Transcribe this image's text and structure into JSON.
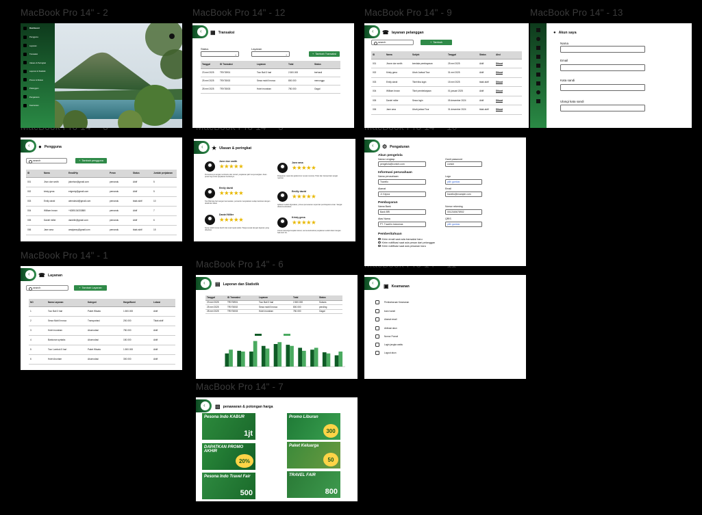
{
  "frames": {
    "f2": {
      "title": "MacBook Pro 14\" - 2",
      "brand": "Dashboard",
      "menu": [
        "Pengguna",
        "Layanan",
        "Transaksi",
        "Ulasan & Peringkat",
        "Laporan & Statistik",
        "Promo & Diskon",
        "Pelanggan",
        "Pengaturan",
        "Keamanan"
      ]
    },
    "f12": {
      "title": "MacBook Pro 14\" - 12",
      "page_title": "Transaksi",
      "status_label": "Status",
      "layanan_label": "Layanan",
      "add_button": "Tambah Transaksi",
      "headers": [
        "Tanggal",
        "ID Transaksi",
        "Layanan",
        "Total",
        "Status"
      ],
      "rows": [
        [
          "23 mei 2025",
          "TRX78901",
          "Tour Bali 3 hari",
          "2.500.000",
          "berhasil"
        ],
        [
          "25 mei 2025",
          "TRX78002",
          "Sewa mobil Innova",
          "800.000",
          "menunggu"
        ],
        [
          "28 mei 2025",
          "TRX78003",
          "Hotel murahan",
          "750.000",
          "Gagal"
        ]
      ]
    },
    "f9": {
      "title": "MacBook Pro 14\" - 9",
      "page_title": "layanan pelanggan",
      "search_text": "search",
      "add_button": "Tambah",
      "headers": [
        "ID",
        "Nama",
        "Subjek",
        "Tanggal",
        "Status",
        "Aksi"
      ],
      "rows": [
        [
          "001",
          "Jhone doe smith",
          "kendala pembayaran",
          "25 mei 2025",
          "Aktif",
          "Dibuat"
        ],
        [
          "002",
          "Kristy gena",
          "Ubah Jadwal Tour",
          "31 mei 2025",
          "Aktif",
          "Dibuat"
        ],
        [
          "003",
          "Emily david",
          "Tiket tiba login",
          "15 mei 2025",
          "tidak aktif",
          "Dibuat"
        ],
        [
          "004",
          "William brown",
          "Tiket pembelanjaan",
          "01 januari 2025",
          "Aktif",
          "Dibuat"
        ],
        [
          "005",
          "Daniel miller",
          "Sewa login",
          "05 desember 2024",
          "Aktif",
          "Dibuat"
        ],
        [
          "006",
          "Jane ama",
          "Ubah jadwal Tour",
          "31 desember 2024",
          "tidak aktif",
          "Dibuat"
        ]
      ]
    },
    "f13": {
      "title": "MacBook Pro 14\" - 13",
      "page_title": "Akun saya",
      "fields": [
        "Nama",
        "Email",
        "Kata sandi",
        "Ulangi kata sandi"
      ]
    },
    "f3": {
      "title": "MacBook Pro 14\" - 3",
      "page_title": "Pengguna",
      "search_text": "search",
      "add_button": "Tambah pengguna",
      "headers": [
        "ID",
        "Nama",
        "Email/Hp",
        "Peran",
        "Status",
        "Jumlah perjalanan"
      ],
      "rows": [
        [
          "001",
          "Jhon doe smith",
          "jdsmhon@gmail.com",
          "pemandu",
          "Aktif",
          "5"
        ],
        [
          "002",
          "kristy gena",
          "erigenty@gmail.com",
          "pemandu",
          "Aktif",
          "5"
        ],
        [
          "003",
          "Emily david",
          "alemdavid@gmail.com",
          "pemandu",
          "tidak aktif",
          "10"
        ],
        [
          "004",
          "William brown",
          "+6285134333880",
          "pemandu",
          "Aktif",
          "7"
        ],
        [
          "005",
          "Daniel miller",
          "danielle@gmail.com",
          "pemandu",
          "Aktif",
          "6"
        ],
        [
          "006",
          "Jane ama",
          "amajaney@gmail.com",
          "pemandu",
          "tidak aktif",
          "15"
        ]
      ]
    },
    "f5": {
      "title": "MacBook Pro 14\" - 5",
      "page_title": "Ulasan & peringkat",
      "reviews": [
        {
          "name": "Jone doe smith",
          "stars": "★★★★★",
          "text": "Pemandunya sangat membantu dan ramah, perjalanan jadi menyenangkan. Akan pesan lagi untuk perjalanan berikutnya."
        },
        {
          "name": "Jone ama",
          "stars": "★★★★★",
          "text": "Pelayanan cepat dan jadwal tour sesuai rencana. Hotel dan transportasi sangat nyaman."
        },
        {
          "name": "Emily david",
          "stars": "★★★★★",
          "text": "Tour Bali tiga hari sangat memuaskan, pemandu menjelaskan setiap destinasi dengan detail dan sabar."
        },
        {
          "name": "Emilly david",
          "stars": "★★★★★",
          "text": "Aplikasi mudah digunakan, proses pemesanan cepat dan pembayaran aman. Sangat direkomendasikan."
        },
        {
          "name": "Daniel Miller",
          "stars": "★★★★★",
          "text": "Sewa mobil Innova bersih dan sopir tepat waktu. Harga sesuai dengan layanan yang diberikan."
        },
        {
          "name": "Kristy gena",
          "stars": "★★★★★",
          "text": "Liburan keluarga berjalan lancar, semua kebutuhan perjalanan sudah diatur dengan baik oleh tim."
        }
      ]
    },
    "f10": {
      "title": "MacBook Pro 14\" - 10",
      "page_title": "Pengaturan",
      "sec1": "Akun pengelola",
      "nama_lengkap_lbl": "Nama Lengkap",
      "nama_lengkap_val": "pengelola@contoh.com",
      "ganti_pw_lbl": "Ganti password",
      "ganti_pw_val": "contoh",
      "sec2": "Informasi perusahaan",
      "nama_perusahaan_lbl": "Nama perusahaan",
      "nama_perusahaan_val": "Travelio",
      "logo_lbl": "Logo",
      "logo_val": "pilih gambar",
      "alamat_lbl": "Alamat",
      "alamat_val": "Jl. Kejora",
      "email_lbl": "Email",
      "email_val": "travelio@example.com",
      "sec3": "Pembayaran",
      "nama_bank_lbl": "Nama Bank",
      "nama_bank_val": "Bank BRI",
      "rekening_lbl": "Nomor rekening",
      "rekening_val": "0012345678902",
      "atas_nama_lbl": "Atas Nama",
      "atas_nama_val": "PT. Travelin Indonesia",
      "qris_lbl": "QRIS",
      "qris_val": "pilih gambar",
      "sec4": "Pemberitahuan",
      "notif": [
        "Kirim email saat ada transaksi baru",
        "Kirim notifikasi saat ada pesan dari pelanggan",
        "Kirim notifikasi saat ada pesanan baru"
      ]
    },
    "f1": {
      "title": "MacBook Pro 14\" - 1",
      "page_title": "Layanan",
      "search_text": "search",
      "add_button": "Tambah Layanan",
      "headers": [
        "NO",
        "Nama Layanan",
        "Kategori",
        "Harga/Nomi",
        "Lokasi"
      ],
      "rows": [
        [
          "1",
          "Tour Bali 3 hari",
          "Paket Wisata",
          "1.500.000",
          "Aktif"
        ],
        [
          "2",
          "Sewa Mobil Innova",
          "Transportasi",
          "200.000",
          "Tidak aktif"
        ],
        [
          "3",
          "Hotel murahan",
          "Akomodasi",
          "750.000",
          "Aktif"
        ],
        [
          "4",
          "Bankoran syntaks",
          "Akomodasi",
          "150.000",
          "Aktif"
        ],
        [
          "5",
          "Tour Lombok 5 hari",
          "Paket Wisata",
          "1.500.000",
          "Aktif"
        ],
        [
          "6",
          "Hotel Aruntam",
          "Akomodasi",
          "300.000",
          "Aktif"
        ]
      ]
    },
    "f6": {
      "title": "MacBook Pro 14\" - 6",
      "page_title": "Laporan dan Statistik",
      "headers": [
        "Tanggal",
        "ID Transaksi",
        "Layanan",
        "Total",
        "Status"
      ],
      "rows": [
        [
          "23 mei 2025",
          "TRX78901",
          "Tour Bali 3 hari",
          "2.500.000",
          "Sukses"
        ],
        [
          "25 mei 2025",
          "TRX78002",
          "Sewa mobil Innova",
          "800.000",
          "pending"
        ],
        [
          "28 mei 2025",
          "TRX78003",
          "Hotel murahan",
          "750.000",
          "Gagal"
        ]
      ]
    },
    "f11": {
      "title": "MacBook Pro 14\" - 11",
      "page_title": "Keamanan",
      "items": [
        "Pembaharuan Keamanan",
        "kunci sandi",
        "Alamat email",
        "Aktivasi akun",
        "Nomor Ponsel",
        "Login jangka waktu",
        "Logout akun"
      ]
    },
    "f7": {
      "title": "MacBook Pro 14\" - 7",
      "page_title": "penawaran & potongan harga",
      "promos": [
        {
          "title": "Pesona Indo KABUR",
          "value": "1jt"
        },
        {
          "title": "Promo Liburan",
          "value": "300"
        },
        {
          "title": "DAPATKAN PROMO AKHIR",
          "value": "20%"
        },
        {
          "title": "Paket Keluarga",
          "value": "50"
        },
        {
          "title": "Pesona Indo Travel Fair",
          "value": "500"
        },
        {
          "title": "TRAVEL FAIR",
          "value": "800"
        }
      ]
    }
  },
  "chart_data": {
    "type": "bar",
    "categories": [
      "1",
      "2",
      "3",
      "4",
      "5",
      "6",
      "7",
      "8",
      "9",
      "10"
    ],
    "series": [
      {
        "values": [
          35,
          42,
          40,
          55,
          60,
          58,
          50,
          45,
          38,
          30
        ]
      },
      {
        "values": [
          45,
          40,
          68,
          48,
          65,
          55,
          42,
          50,
          35,
          40
        ]
      }
    ],
    "colors": [
      "#0f5b26",
      "#4aaa60"
    ],
    "ylim": [
      0,
      80
    ]
  }
}
